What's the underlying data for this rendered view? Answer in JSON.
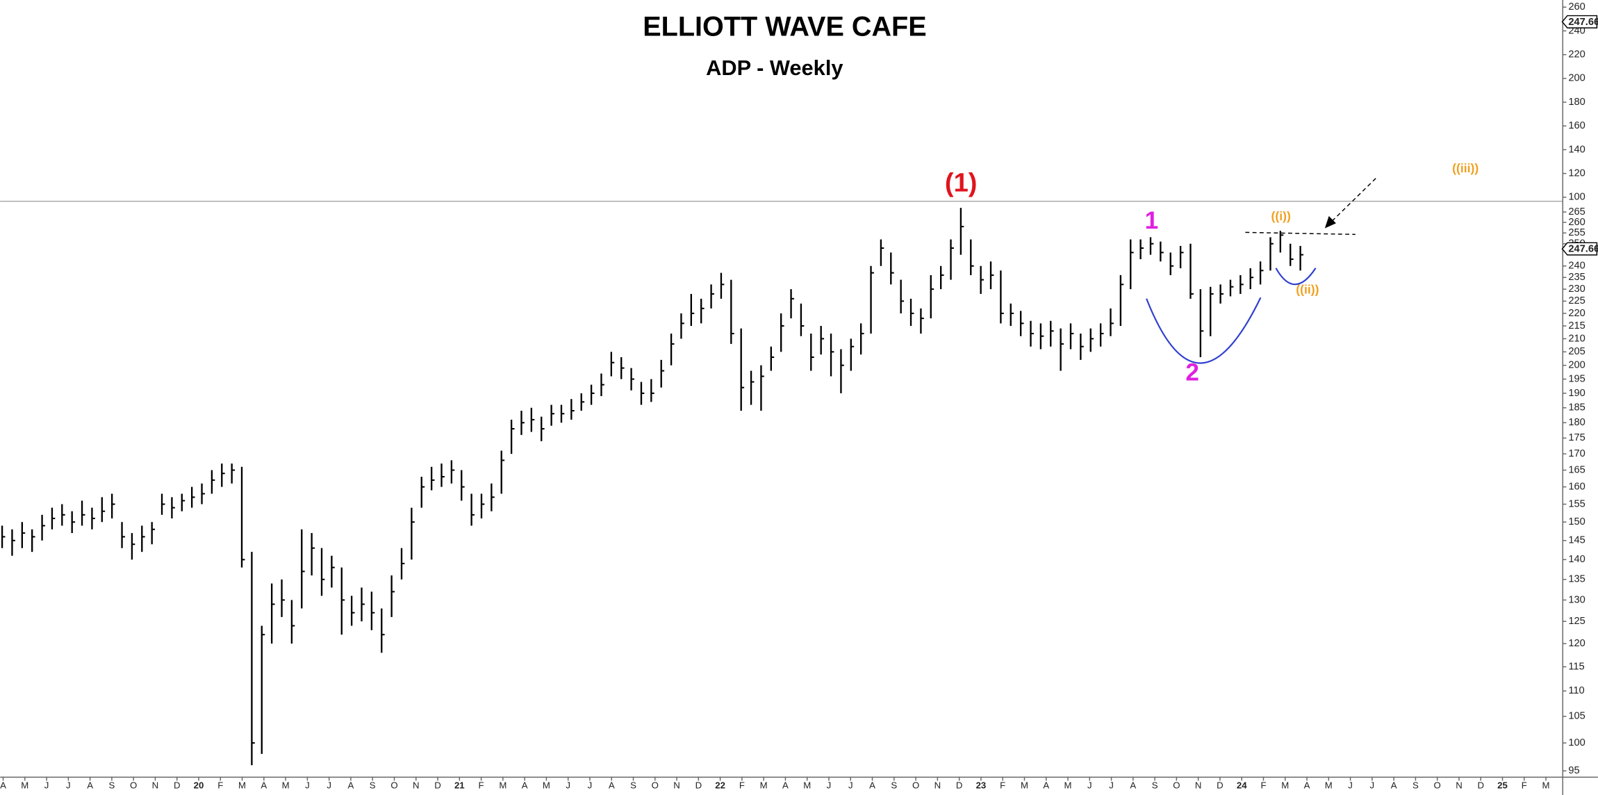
{
  "chart_data": [
    {
      "type": "ohlc",
      "title": "ELLIOTT WAVE CAFE",
      "subtitle": "ADP - Weekly",
      "log_scale": true,
      "ylim": [
        94,
        270
      ],
      "yticks": [
        95,
        100,
        105,
        110,
        115,
        120,
        125,
        130,
        135,
        140,
        145,
        150,
        155,
        160,
        165,
        170,
        175,
        180,
        185,
        190,
        195,
        200,
        205,
        210,
        215,
        220,
        225,
        230,
        235,
        240,
        250,
        255,
        260,
        265
      ],
      "last_price": 247.66,
      "color": "#000000",
      "x_labels": [
        "A",
        "M",
        "J",
        "J",
        "A",
        "S",
        "O",
        "N",
        "D",
        "20",
        "F",
        "M",
        "A",
        "M",
        "J",
        "J",
        "A",
        "S",
        "O",
        "N",
        "D",
        "21",
        "F",
        "M",
        "A",
        "M",
        "J",
        "J",
        "A",
        "S",
        "O",
        "N",
        "D",
        "22",
        "F",
        "M",
        "A",
        "M",
        "J",
        "J",
        "A",
        "S",
        "O",
        "N",
        "D",
        "23",
        "F",
        "M",
        "A",
        "M",
        "J",
        "J",
        "A",
        "S",
        "O",
        "N",
        "D",
        "24",
        "F",
        "M",
        "A",
        "M",
        "J",
        "J",
        "A",
        "S",
        "O",
        "N",
        "D",
        "25",
        "F",
        "M"
      ],
      "bars": [
        [
          149,
          143,
          146
        ],
        [
          148,
          141,
          145
        ],
        [
          150,
          143,
          147
        ],
        [
          148,
          142,
          146
        ],
        [
          152,
          145,
          149
        ],
        [
          154,
          148,
          151
        ],
        [
          155,
          149,
          152
        ],
        [
          153,
          147,
          150
        ],
        [
          156,
          149,
          152
        ],
        [
          154,
          148,
          151
        ],
        [
          157,
          150,
          153
        ],
        [
          158,
          151,
          155
        ],
        [
          150,
          143,
          146
        ],
        [
          147,
          140,
          144
        ],
        [
          149,
          142,
          146
        ],
        [
          150,
          144,
          148
        ],
        [
          158,
          152,
          155
        ],
        [
          157,
          151,
          154
        ],
        [
          158,
          153,
          156
        ],
        [
          160,
          154,
          157
        ],
        [
          161,
          155,
          158
        ],
        [
          165,
          158,
          162
        ],
        [
          167,
          160,
          164
        ],
        [
          167,
          161,
          165
        ],
        [
          166,
          138,
          140
        ],
        [
          142,
          96,
          100
        ],
        [
          124,
          98,
          122
        ],
        [
          134,
          120,
          129
        ],
        [
          135,
          126,
          130
        ],
        [
          130,
          120,
          124
        ],
        [
          148,
          128,
          137
        ],
        [
          147,
          136,
          143
        ],
        [
          143,
          131,
          135
        ],
        [
          141,
          133,
          138
        ],
        [
          138,
          122,
          130
        ],
        [
          131,
          124,
          127
        ],
        [
          133,
          125,
          129
        ],
        [
          132,
          123,
          127
        ],
        [
          128,
          118,
          122
        ],
        [
          136,
          126,
          132
        ],
        [
          143,
          135,
          139
        ],
        [
          154,
          140,
          150
        ],
        [
          163,
          154,
          160
        ],
        [
          166,
          159,
          162
        ],
        [
          167,
          160,
          163
        ],
        [
          168,
          161,
          165
        ],
        [
          165,
          156,
          160
        ],
        [
          158,
          149,
          152
        ],
        [
          158,
          151,
          155
        ],
        [
          161,
          153,
          157
        ],
        [
          171,
          158,
          168
        ],
        [
          181,
          170,
          178
        ],
        [
          184,
          176,
          180
        ],
        [
          185,
          177,
          181
        ],
        [
          182,
          174,
          178
        ],
        [
          186,
          179,
          183
        ],
        [
          186,
          180,
          183
        ],
        [
          188,
          181,
          184
        ],
        [
          190,
          184,
          187
        ],
        [
          193,
          186,
          190
        ],
        [
          197,
          189,
          193
        ],
        [
          205,
          196,
          201
        ],
        [
          203,
          195,
          199
        ],
        [
          199,
          191,
          195
        ],
        [
          194,
          186,
          190
        ],
        [
          195,
          187,
          190
        ],
        [
          202,
          192,
          198
        ],
        [
          212,
          200,
          208
        ],
        [
          220,
          210,
          216
        ],
        [
          228,
          215,
          220
        ],
        [
          226,
          216,
          222
        ],
        [
          232,
          222,
          228
        ],
        [
          237,
          226,
          232
        ],
        [
          234,
          208,
          212
        ],
        [
          214,
          184,
          192
        ],
        [
          198,
          186,
          194
        ],
        [
          200,
          184,
          196
        ],
        [
          207,
          198,
          203
        ],
        [
          220,
          205,
          215
        ],
        [
          230,
          218,
          226
        ],
        [
          224,
          211,
          215
        ],
        [
          212,
          198,
          203
        ],
        [
          215,
          204,
          210
        ],
        [
          212,
          196,
          205
        ],
        [
          206,
          190,
          200
        ],
        [
          210,
          198,
          207
        ],
        [
          216,
          204,
          212
        ],
        [
          240,
          212,
          237
        ],
        [
          252,
          240,
          248
        ],
        [
          246,
          232,
          237
        ],
        [
          234,
          220,
          225
        ],
        [
          226,
          215,
          220
        ],
        [
          222,
          212,
          218
        ],
        [
          236,
          218,
          230
        ],
        [
          240,
          230,
          236
        ],
        [
          252,
          234,
          248
        ],
        [
          267,
          245,
          258
        ],
        [
          252,
          236,
          240
        ],
        [
          240,
          228,
          234
        ],
        [
          242,
          230,
          236
        ],
        [
          238,
          216,
          220
        ],
        [
          224,
          215,
          220
        ],
        [
          221,
          211,
          216
        ],
        [
          217,
          207,
          212
        ],
        [
          216,
          206,
          211
        ],
        [
          217,
          207,
          213
        ],
        [
          214,
          198,
          208
        ],
        [
          216,
          206,
          212
        ],
        [
          212,
          202,
          207
        ],
        [
          214,
          205,
          210
        ],
        [
          216,
          207,
          212
        ],
        [
          222,
          211,
          216
        ],
        [
          236,
          215,
          232
        ],
        [
          252,
          230,
          246
        ],
        [
          252,
          243,
          248
        ],
        [
          253,
          245,
          250
        ],
        [
          251,
          242,
          246
        ],
        [
          246,
          236,
          240
        ],
        [
          249,
          239,
          246
        ],
        [
          250,
          226,
          228
        ],
        [
          230,
          203,
          213
        ],
        [
          231,
          211,
          228
        ],
        [
          232,
          224,
          228
        ],
        [
          234,
          227,
          231
        ],
        [
          236,
          228,
          232
        ],
        [
          239,
          230,
          235
        ],
        [
          242,
          232,
          238
        ],
        [
          253,
          238,
          250
        ],
        [
          256,
          246,
          254
        ],
        [
          250,
          240,
          243
        ],
        [
          249,
          238,
          245
        ]
      ],
      "annotations": [
        {
          "text": "(1)",
          "color": "#e0141e"
        },
        {
          "text": "1",
          "color": "#e020e0"
        },
        {
          "text": "2",
          "color": "#e020e0"
        },
        {
          "text": "((i))",
          "color": "#f0a020"
        },
        {
          "text": "((ii))",
          "color": "#f0a020"
        },
        {
          "text": "((iii))",
          "color": "#f0a020"
        }
      ]
    },
    {
      "type": "line",
      "ylim": [
        97,
        266
      ],
      "yticks": [
        100,
        120,
        140,
        160,
        180,
        200,
        220,
        240,
        260
      ],
      "last_price": 247.66
    }
  ]
}
